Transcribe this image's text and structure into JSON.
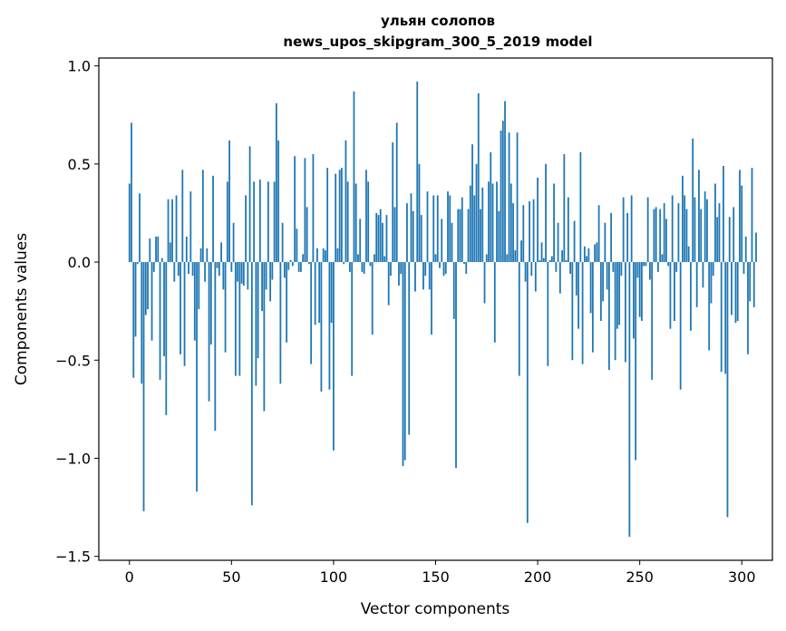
{
  "chart_data": {
    "type": "bar",
    "title": "ульян солопов",
    "subtitle": "news_upos_skipgram_300_5_2019 model",
    "xlabel": "Vector components",
    "ylabel": "Components values",
    "xlim": [
      -15,
      315
    ],
    "ylim": [
      -1.52,
      1.04
    ],
    "xticks": [
      0,
      50,
      100,
      150,
      200,
      250,
      300
    ],
    "xtick_labels": [
      "0",
      "50",
      "100",
      "150",
      "200",
      "250",
      "300"
    ],
    "yticks": [
      -1.5,
      -1.0,
      -0.5,
      0.0,
      0.5,
      1.0
    ],
    "ytick_labels": [
      "−1.5",
      "−1.0",
      "−0.5",
      "0.0",
      "0.5",
      "1.0"
    ],
    "grid": false,
    "bar_color": "#1f77b4",
    "values": [
      0.4,
      0.71,
      -0.59,
      -0.38,
      -0.01,
      0.35,
      -0.62,
      -1.27,
      -0.27,
      -0.24,
      0.12,
      -0.4,
      -0.05,
      0.13,
      0.13,
      -0.6,
      0.02,
      -0.48,
      -0.78,
      0.32,
      0.1,
      0.32,
      -0.1,
      0.34,
      -0.07,
      -0.47,
      0.47,
      -0.53,
      0.13,
      -0.06,
      0.36,
      -0.07,
      -0.4,
      -1.17,
      -0.24,
      0.07,
      0.47,
      -0.1,
      0.07,
      -0.71,
      -0.42,
      0.44,
      -0.86,
      -0.03,
      -0.07,
      0.1,
      -0.14,
      -0.46,
      0.41,
      0.62,
      -0.05,
      0.2,
      -0.58,
      -0.1,
      -0.58,
      -0.11,
      -0.12,
      0.34,
      -0.14,
      0.59,
      -1.24,
      0.41,
      -0.63,
      -0.49,
      0.42,
      -0.25,
      -0.76,
      -0.14,
      0.41,
      -0.2,
      -0.09,
      0.41,
      0.81,
      0.62,
      -0.62,
      0.2,
      -0.08,
      -0.41,
      -0.04,
      0.01,
      -0.02,
      0.54,
      0.17,
      -0.05,
      -0.05,
      0.04,
      0.53,
      0.28,
      -0.01,
      -0.52,
      0.55,
      -0.32,
      0.07,
      -0.31,
      -0.66,
      0.07,
      0.06,
      0.48,
      -0.65,
      -0.31,
      -0.96,
      0.45,
      0.07,
      0.47,
      0.48,
      -0.01,
      0.62,
      0.41,
      -0.05,
      -0.58,
      0.87,
      0.4,
      0.04,
      0.22,
      -0.05,
      -0.06,
      0.47,
      0.41,
      -0.02,
      -0.37,
      0.04,
      0.25,
      0.24,
      0.27,
      0.2,
      0.03,
      0.24,
      -0.22,
      -0.07,
      0.61,
      0.28,
      0.71,
      -0.12,
      -0.06,
      -1.04,
      -1.01,
      0.3,
      -0.88,
      0.35,
      0.26,
      -0.15,
      0.92,
      0.5,
      0.24,
      -0.14,
      -0.07,
      0.36,
      -0.14,
      -0.37,
      0.34,
      0.04,
      0.34,
      -0.03,
      0.22,
      -0.07,
      -0.06,
      0.36,
      0.34,
      0.2,
      -0.29,
      -1.05,
      0.27,
      0.27,
      0.33,
      -0.01,
      -0.06,
      0.27,
      0.39,
      0.6,
      0.34,
      0.5,
      0.86,
      0.27,
      0.38,
      -0.21,
      0.04,
      0.41,
      0.56,
      0.4,
      -0.41,
      0.41,
      0.26,
      0.67,
      0.72,
      0.82,
      0.04,
      0.66,
      0.4,
      0.3,
      0.06,
      0.66,
      -0.58,
      0.11,
      0.29,
      -0.1,
      -1.33,
      0.31,
      -0.07,
      0.32,
      -0.15,
      0.43,
      0.01,
      0.1,
      0.02,
      0.5,
      -0.53,
      0.01,
      0.03,
      0.4,
      -0.05,
      0.2,
      -0.16,
      0.06,
      0.55,
      0.01,
      0.33,
      -0.06,
      -0.5,
      0.21,
      -0.17,
      -0.34,
      0.56,
      -0.52,
      0.08,
      0.03,
      0.07,
      -0.26,
      -0.46,
      0.09,
      0.1,
      0.29,
      -0.3,
      -0.2,
      0.2,
      -0.14,
      -0.55,
      0.25,
      -0.05,
      -0.5,
      -0.34,
      -0.32,
      -0.07,
      0.33,
      -0.51,
      0.25,
      -1.4,
      0.34,
      -0.39,
      -1.01,
      -0.08,
      -0.28,
      -0.3,
      -0.02,
      -0.02,
      0.33,
      -0.09,
      -0.6,
      0.27,
      0.28,
      -0.05,
      0.27,
      0.04,
      0.3,
      0.22,
      -0.02,
      -0.34,
      0.34,
      -0.3,
      -0.05,
      0.3,
      -0.65,
      0.44,
      0.34,
      0.27,
      0.08,
      -0.35,
      0.63,
      0.33,
      -0.23,
      0.47,
      0.27,
      -0.13,
      0.36,
      0.32,
      -0.45,
      -0.21,
      -0.07,
      0.4,
      0.23,
      0.3,
      -0.56,
      0.49,
      -0.57,
      -1.3,
      0.23,
      -0.27,
      0.28,
      -0.31,
      -0.3,
      0.47,
      0.39,
      -0.06,
      0.13,
      -0.47,
      -0.2,
      0.48,
      -0.23,
      0.15,
      0.0,
      0.0
    ]
  }
}
